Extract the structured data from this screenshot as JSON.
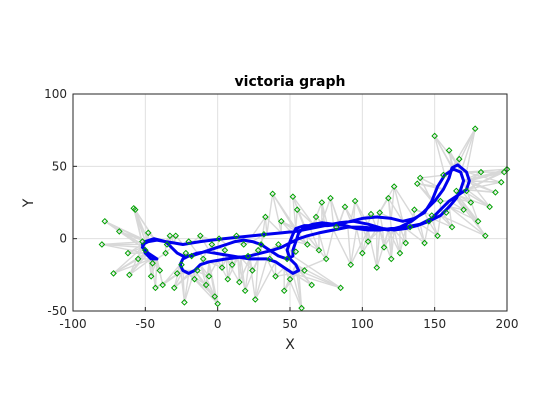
{
  "chart_data": {
    "type": "scatter",
    "title": "victoria graph",
    "xlabel": "X",
    "ylabel": "Y",
    "xlim": [
      -100,
      200
    ],
    "ylim": [
      -50,
      100
    ],
    "xticks": [
      -100,
      -50,
      0,
      50,
      100,
      150,
      200
    ],
    "yticks": [
      -50,
      0,
      50,
      100
    ],
    "grid": true,
    "colors": {
      "landmarks": "#00a000",
      "trajectory": "#0000ee",
      "edges": "#d8d8d8",
      "grid": "#e0e0e0",
      "axes": "#262626"
    },
    "series": [
      {
        "kind": "landmarks",
        "marker": "diamond",
        "points": [
          [
            -80,
            -4
          ],
          [
            -78,
            12
          ],
          [
            -72,
            -24
          ],
          [
            -68,
            5
          ],
          [
            -62,
            -10
          ],
          [
            -61,
            -25
          ],
          [
            -58,
            21
          ],
          [
            -57,
            20
          ],
          [
            -55,
            -14
          ],
          [
            -52,
            -2
          ],
          [
            -50,
            -8
          ],
          [
            -48,
            4
          ],
          [
            -46,
            -26
          ],
          [
            -45,
            -17
          ],
          [
            -43,
            -34
          ],
          [
            -40,
            -22
          ],
          [
            -38,
            -32
          ],
          [
            -36,
            -10
          ],
          [
            -35,
            -4
          ],
          [
            -33,
            2
          ],
          [
            -30,
            -34
          ],
          [
            -29,
            2
          ],
          [
            -28,
            -24
          ],
          [
            -25,
            -18
          ],
          [
            -23,
            -44
          ],
          [
            -22,
            -10
          ],
          [
            -20,
            -2
          ],
          [
            -18,
            -12
          ],
          [
            -16,
            -28
          ],
          [
            -14,
            -22
          ],
          [
            -12,
            2
          ],
          [
            -10,
            -14
          ],
          [
            -8,
            -32
          ],
          [
            -6,
            -26
          ],
          [
            -4,
            -4
          ],
          [
            -2,
            -40
          ],
          [
            0,
            -45
          ],
          [
            1,
            0
          ],
          [
            3,
            -20
          ],
          [
            5,
            -8
          ],
          [
            7,
            -28
          ],
          [
            10,
            -18
          ],
          [
            13,
            2
          ],
          [
            15,
            -30
          ],
          [
            18,
            -4
          ],
          [
            19,
            -36
          ],
          [
            21,
            -12
          ],
          [
            24,
            -22
          ],
          [
            26,
            -42
          ],
          [
            28,
            -8
          ],
          [
            30,
            -4
          ],
          [
            32,
            3
          ],
          [
            33,
            15
          ],
          [
            36,
            -14
          ],
          [
            38,
            31
          ],
          [
            40,
            -26
          ],
          [
            42,
            -4
          ],
          [
            44,
            12
          ],
          [
            46,
            -36
          ],
          [
            48,
            -14
          ],
          [
            50,
            -28
          ],
          [
            52,
            29
          ],
          [
            54,
            -9
          ],
          [
            55,
            20
          ],
          [
            58,
            -48
          ],
          [
            60,
            -22
          ],
          [
            62,
            -4
          ],
          [
            65,
            -32
          ],
          [
            68,
            15
          ],
          [
            70,
            -8
          ],
          [
            72,
            25
          ],
          [
            75,
            -14
          ],
          [
            78,
            28
          ],
          [
            82,
            8
          ],
          [
            85,
            -34
          ],
          [
            88,
            22
          ],
          [
            92,
            -18
          ],
          [
            95,
            26
          ],
          [
            100,
            -10
          ],
          [
            104,
            -2
          ],
          [
            106,
            17
          ],
          [
            110,
            -20
          ],
          [
            112,
            18
          ],
          [
            115,
            -6
          ],
          [
            118,
            28
          ],
          [
            120,
            -14
          ],
          [
            122,
            36
          ],
          [
            126,
            -10
          ],
          [
            130,
            -3
          ],
          [
            133,
            8
          ],
          [
            136,
            20
          ],
          [
            138,
            38
          ],
          [
            140,
            42
          ],
          [
            143,
            -3
          ],
          [
            146,
            12
          ],
          [
            148,
            16
          ],
          [
            150,
            71
          ],
          [
            152,
            2
          ],
          [
            154,
            26
          ],
          [
            156,
            44
          ],
          [
            158,
            18
          ],
          [
            160,
            61
          ],
          [
            162,
            8
          ],
          [
            165,
            33
          ],
          [
            167,
            55
          ],
          [
            170,
            20
          ],
          [
            172,
            33
          ],
          [
            175,
            25
          ],
          [
            178,
            76
          ],
          [
            180,
            12
          ],
          [
            182,
            46
          ],
          [
            185,
            2
          ],
          [
            188,
            22
          ],
          [
            192,
            32
          ],
          [
            196,
            39
          ],
          [
            198,
            46
          ],
          [
            200,
            48
          ]
        ]
      },
      {
        "kind": "trajectory",
        "points": [
          [
            -42,
            -14
          ],
          [
            -48,
            -10
          ],
          [
            -52,
            -6
          ],
          [
            -50,
            -2
          ],
          [
            -44,
            0
          ],
          [
            -36,
            -2
          ],
          [
            -30,
            -3
          ],
          [
            -24,
            -4
          ],
          [
            -18,
            -3
          ],
          [
            -12,
            -2
          ],
          [
            -4,
            -1
          ],
          [
            4,
            0
          ],
          [
            14,
            1
          ],
          [
            24,
            2
          ],
          [
            34,
            3
          ],
          [
            44,
            4
          ],
          [
            54,
            5
          ],
          [
            64,
            7
          ],
          [
            74,
            9
          ],
          [
            84,
            11
          ],
          [
            94,
            12
          ],
          [
            104,
            10
          ],
          [
            114,
            7
          ],
          [
            122,
            6
          ],
          [
            130,
            7
          ],
          [
            138,
            9
          ],
          [
            146,
            12
          ],
          [
            154,
            16
          ],
          [
            160,
            22
          ],
          [
            165,
            28
          ],
          [
            168,
            34
          ],
          [
            170,
            40
          ],
          [
            168,
            46
          ],
          [
            163,
            48
          ],
          [
            157,
            44
          ],
          [
            152,
            36
          ],
          [
            148,
            26
          ],
          [
            143,
            18
          ],
          [
            136,
            14
          ],
          [
            128,
            12
          ],
          [
            120,
            14
          ],
          [
            110,
            15
          ],
          [
            100,
            14
          ],
          [
            92,
            12
          ],
          [
            84,
            10
          ],
          [
            76,
            9
          ],
          [
            68,
            9
          ],
          [
            60,
            9
          ],
          [
            54,
            7
          ],
          [
            52,
            3
          ],
          [
            50,
            -2
          ],
          [
            48,
            -8
          ],
          [
            50,
            -14
          ],
          [
            54,
            -18
          ],
          [
            56,
            -22
          ],
          [
            52,
            -24
          ],
          [
            46,
            -20
          ],
          [
            40,
            -16
          ],
          [
            34,
            -14
          ],
          [
            28,
            -14
          ],
          [
            22,
            -14
          ],
          [
            16,
            -13
          ],
          [
            10,
            -12
          ],
          [
            4,
            -11
          ],
          [
            -2,
            -10
          ],
          [
            -8,
            -9
          ],
          [
            -14,
            -10
          ],
          [
            -20,
            -12
          ],
          [
            -24,
            -14
          ],
          [
            -26,
            -18
          ],
          [
            -24,
            -22
          ],
          [
            -20,
            -24
          ],
          [
            -16,
            -22
          ],
          [
            -12,
            -18
          ],
          [
            -6,
            -16
          ],
          [
            0,
            -15
          ],
          [
            6,
            -14
          ],
          [
            14,
            -13
          ],
          [
            22,
            -12
          ],
          [
            30,
            -10
          ],
          [
            38,
            -8
          ],
          [
            44,
            -6
          ],
          [
            50,
            -3
          ],
          [
            56,
            0
          ],
          [
            62,
            2
          ],
          [
            70,
            4
          ],
          [
            80,
            6
          ],
          [
            90,
            8
          ],
          [
            100,
            8
          ],
          [
            110,
            7
          ],
          [
            118,
            6
          ],
          [
            126,
            8
          ],
          [
            134,
            12
          ],
          [
            142,
            18
          ],
          [
            150,
            26
          ],
          [
            156,
            34
          ],
          [
            160,
            42
          ],
          [
            162,
            49
          ],
          [
            166,
            51
          ],
          [
            172,
            46
          ],
          [
            174,
            40
          ],
          [
            172,
            34
          ],
          [
            166,
            30
          ],
          [
            160,
            26
          ],
          [
            154,
            20
          ],
          [
            148,
            14
          ],
          [
            140,
            10
          ],
          [
            130,
            8
          ],
          [
            120,
            7
          ],
          [
            112,
            6
          ],
          [
            104,
            6
          ],
          [
            96,
            7
          ],
          [
            88,
            9
          ],
          [
            80,
            10
          ],
          [
            72,
            11
          ],
          [
            66,
            10
          ],
          [
            60,
            8
          ],
          [
            56,
            4
          ],
          [
            54,
            -2
          ],
          [
            52,
            -8
          ],
          [
            52,
            -12
          ],
          [
            48,
            -14
          ],
          [
            42,
            -12
          ],
          [
            36,
            -8
          ],
          [
            30,
            -4
          ],
          [
            24,
            -2
          ],
          [
            18,
            -1
          ],
          [
            12,
            -2
          ],
          [
            6,
            -4
          ],
          [
            0,
            -6
          ],
          [
            -6,
            -8
          ],
          [
            -12,
            -10
          ],
          [
            -18,
            -12
          ],
          [
            -24,
            -12
          ],
          [
            -28,
            -10
          ],
          [
            -32,
            -6
          ],
          [
            -36,
            -2
          ],
          [
            -42,
            -1
          ],
          [
            -48,
            -2
          ],
          [
            -52,
            -4
          ],
          [
            -50,
            -10
          ],
          [
            -46,
            -14
          ],
          [
            -42,
            -14
          ]
        ]
      }
    ]
  }
}
